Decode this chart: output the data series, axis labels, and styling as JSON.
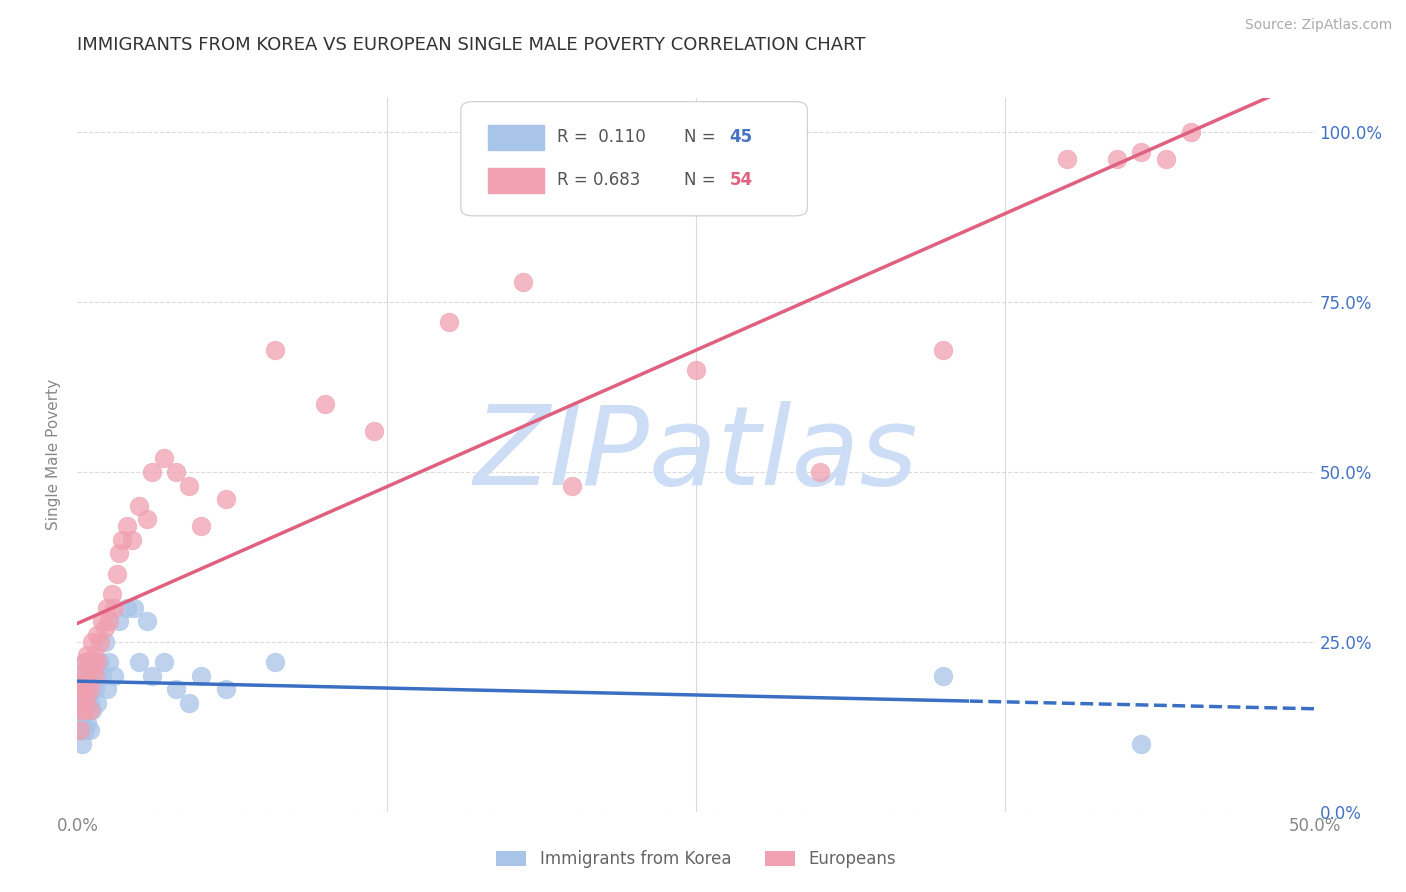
{
  "title": "IMMIGRANTS FROM KOREA VS EUROPEAN SINGLE MALE POVERTY CORRELATION CHART",
  "source": "Source: ZipAtlas.com",
  "ylabel_left": "Single Male Poverty",
  "ylabel_right_labels": [
    "0.0%",
    "25.0%",
    "50.0%",
    "75.0%",
    "100.0%"
  ],
  "ylabel_right_ticks": [
    0.0,
    0.25,
    0.5,
    0.75,
    1.0
  ],
  "korea_color": "#a8c4e8",
  "european_color": "#f0a0b0",
  "korea_trend_color": "#3a6fc4",
  "european_trend_color": "#e06080",
  "watermark": "ZIPatlas",
  "watermark_color": "#ccddf5",
  "korea_x": [
    0.001,
    0.001,
    0.001,
    0.002,
    0.002,
    0.002,
    0.002,
    0.003,
    0.003,
    0.003,
    0.003,
    0.004,
    0.004,
    0.004,
    0.005,
    0.005,
    0.005,
    0.005,
    0.006,
    0.006,
    0.006,
    0.007,
    0.007,
    0.008,
    0.008,
    0.009,
    0.01,
    0.011,
    0.012,
    0.013,
    0.015,
    0.017,
    0.02,
    0.023,
    0.025,
    0.028,
    0.03,
    0.035,
    0.04,
    0.045,
    0.05,
    0.06,
    0.08,
    0.35,
    0.43
  ],
  "korea_y": [
    0.18,
    0.15,
    0.12,
    0.2,
    0.17,
    0.14,
    0.1,
    0.22,
    0.18,
    0.15,
    0.12,
    0.2,
    0.17,
    0.13,
    0.22,
    0.19,
    0.16,
    0.12,
    0.21,
    0.18,
    0.15,
    0.22,
    0.18,
    0.2,
    0.16,
    0.22,
    0.2,
    0.25,
    0.18,
    0.22,
    0.2,
    0.28,
    0.3,
    0.3,
    0.22,
    0.28,
    0.2,
    0.22,
    0.18,
    0.16,
    0.2,
    0.18,
    0.22,
    0.2,
    0.1
  ],
  "european_x": [
    0.001,
    0.001,
    0.001,
    0.002,
    0.002,
    0.003,
    0.003,
    0.003,
    0.004,
    0.004,
    0.004,
    0.005,
    0.005,
    0.005,
    0.006,
    0.006,
    0.007,
    0.007,
    0.008,
    0.008,
    0.009,
    0.01,
    0.011,
    0.012,
    0.013,
    0.014,
    0.015,
    0.016,
    0.017,
    0.018,
    0.02,
    0.022,
    0.025,
    0.028,
    0.03,
    0.035,
    0.04,
    0.045,
    0.05,
    0.06,
    0.08,
    0.1,
    0.12,
    0.15,
    0.18,
    0.2,
    0.25,
    0.3,
    0.35,
    0.4,
    0.42,
    0.43,
    0.44,
    0.45
  ],
  "european_y": [
    0.18,
    0.15,
    0.12,
    0.2,
    0.17,
    0.22,
    0.19,
    0.15,
    0.23,
    0.2,
    0.17,
    0.22,
    0.18,
    0.15,
    0.25,
    0.21,
    0.23,
    0.2,
    0.26,
    0.22,
    0.25,
    0.28,
    0.27,
    0.3,
    0.28,
    0.32,
    0.3,
    0.35,
    0.38,
    0.4,
    0.42,
    0.4,
    0.45,
    0.43,
    0.5,
    0.52,
    0.5,
    0.48,
    0.42,
    0.46,
    0.68,
    0.6,
    0.56,
    0.72,
    0.78,
    0.48,
    0.65,
    0.5,
    0.68,
    0.96,
    0.96,
    0.97,
    0.96,
    1.0
  ],
  "xlim": [
    0.0,
    0.5
  ],
  "ylim": [
    0.0,
    1.05
  ],
  "background_color": "#ffffff",
  "grid_color": "#cccccc"
}
